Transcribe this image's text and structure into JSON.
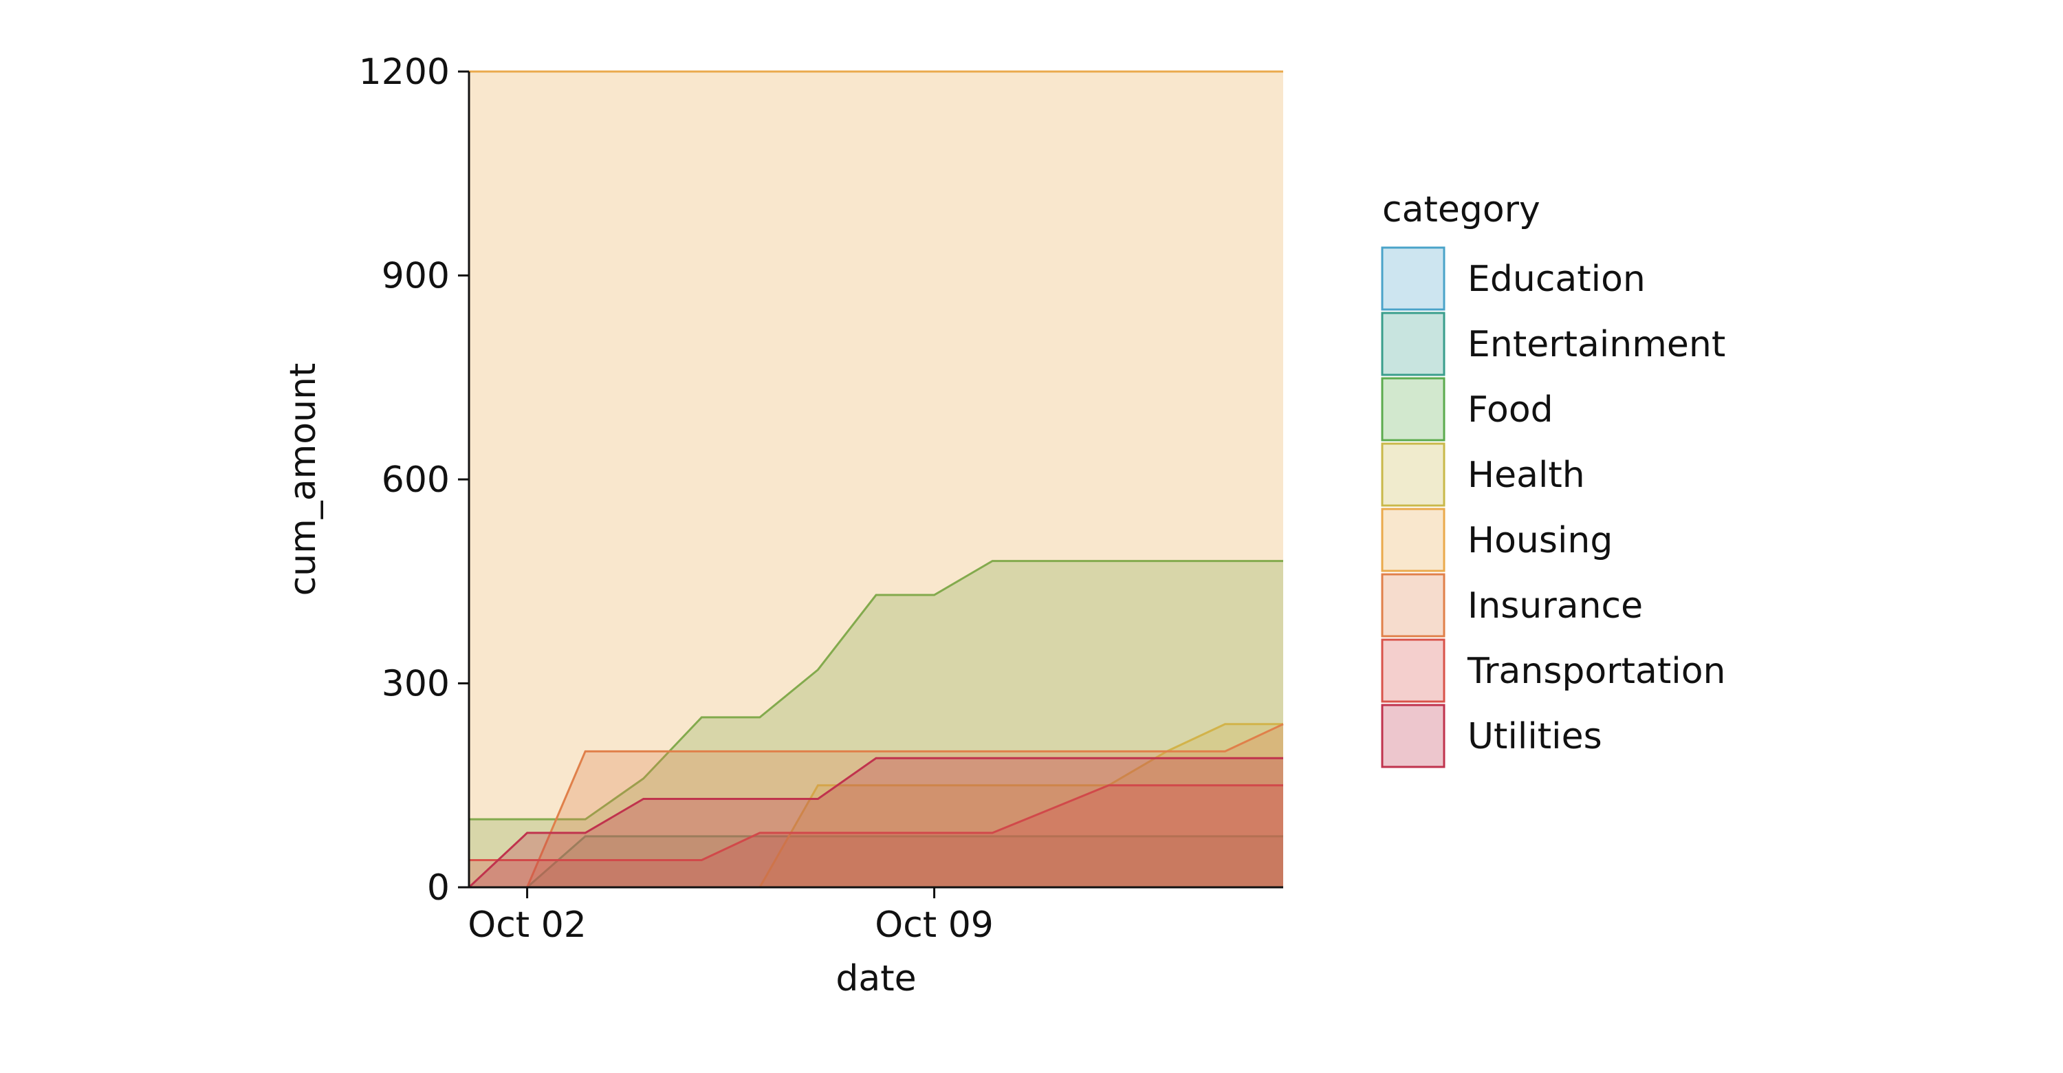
{
  "chart_data": {
    "type": "area",
    "xlabel": "date",
    "ylabel": "cum_amount",
    "xlim": [
      "2023-10-01",
      "2023-10-15"
    ],
    "ylim": [
      0,
      1200
    ],
    "yticks": [
      0,
      300,
      600,
      900,
      1200
    ],
    "xticks": [
      {
        "value": "2023-10-02",
        "label": "Oct 02"
      },
      {
        "value": "2023-10-09",
        "label": "Oct 09"
      }
    ],
    "grid": false,
    "legend": {
      "title": "category",
      "placement": "right"
    },
    "dates": [
      "2023-10-01",
      "2023-10-02",
      "2023-10-03",
      "2023-10-04",
      "2023-10-05",
      "2023-10-06",
      "2023-10-07",
      "2023-10-08",
      "2023-10-09",
      "2023-10-10",
      "2023-10-11",
      "2023-10-12",
      "2023-10-13",
      "2023-10-14",
      "2023-10-15"
    ],
    "series": [
      {
        "name": "Education",
        "color": "#4aa3c9",
        "values": [
          0,
          0,
          0,
          0,
          0,
          0,
          0,
          0,
          0,
          0,
          0,
          0,
          0,
          0,
          0
        ]
      },
      {
        "name": "Entertainment",
        "color": "#3a9e8c",
        "values": [
          null,
          0,
          75,
          75,
          75,
          75,
          75,
          75,
          75,
          75,
          75,
          75,
          75,
          75,
          75
        ]
      },
      {
        "name": "Food",
        "color": "#5cab4e",
        "values": [
          100,
          100,
          100,
          160,
          250,
          250,
          320,
          430,
          430,
          480,
          480,
          480,
          480,
          480,
          480
        ]
      },
      {
        "name": "Health",
        "color": "#c9b84a",
        "values": [
          null,
          null,
          null,
          null,
          null,
          0,
          150,
          150,
          150,
          150,
          150,
          150,
          200,
          240,
          240
        ]
      },
      {
        "name": "Housing",
        "color": "#eaaa4c",
        "values": [
          1200,
          1200,
          1200,
          1200,
          1200,
          1200,
          1200,
          1200,
          1200,
          1200,
          1200,
          1200,
          1200,
          1200,
          1200
        ]
      },
      {
        "name": "Insurance",
        "color": "#e0804a",
        "values": [
          null,
          0,
          200,
          200,
          200,
          200,
          200,
          200,
          200,
          200,
          200,
          200,
          200,
          200,
          240
        ]
      },
      {
        "name": "Transportation",
        "color": "#d9534a",
        "values": [
          40,
          40,
          40,
          40,
          40,
          80,
          80,
          80,
          80,
          80,
          115,
          150,
          150,
          150,
          150
        ]
      },
      {
        "name": "Utilities",
        "color": "#c0334d",
        "values": [
          0,
          80,
          80,
          130,
          130,
          130,
          130,
          190,
          190,
          190,
          190,
          190,
          190,
          190,
          190
        ]
      }
    ],
    "extra_series_note": ""
  }
}
